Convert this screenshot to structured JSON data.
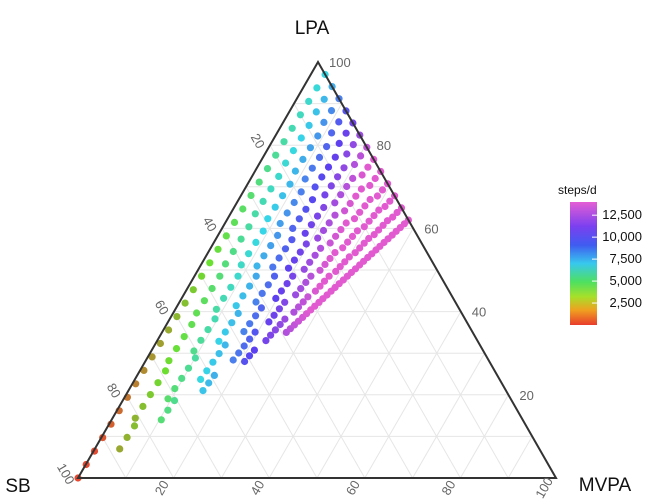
{
  "chart_data": {
    "type": "scatter",
    "subtype": "ternary",
    "vertices": {
      "top": "LPA",
      "left": "SB",
      "right": "MVPA"
    },
    "axis_ticks": {
      "left_edge": [
        "20",
        "40",
        "60",
        "80",
        "100"
      ],
      "right_edge": [
        "20",
        "40",
        "60",
        "80",
        "100"
      ],
      "bottom_edge": [
        "20",
        "40",
        "60",
        "80",
        "100"
      ]
    },
    "axis_range": [
      0,
      100
    ],
    "grid": true,
    "legend": {
      "title": "steps/d",
      "labels": [
        "12,500",
        "10,000",
        "7,500",
        "5,000",
        "2,500"
      ],
      "values": [
        12500,
        10000,
        7500,
        5000,
        2500
      ],
      "range": [
        0,
        14000
      ],
      "placement": "right",
      "colors": [
        "#e25ad0",
        "#5a3ff0",
        "#36d8e8",
        "#6ae030",
        "#e84830"
      ]
    },
    "data_region": {
      "description": "points cover compositions with MVPA between 0 and ~38%, color increasing with MVPA and LPA",
      "corners": [
        {
          "SB": 0,
          "LPA": 97,
          "MVPA": 3
        },
        {
          "SB": 0,
          "LPA": 62,
          "MVPA": 38
        },
        {
          "SB": 39,
          "LPA": 35,
          "MVPA": 26
        },
        {
          "SB": 100,
          "LPA": 0,
          "MVPA": 0
        }
      ]
    }
  }
}
